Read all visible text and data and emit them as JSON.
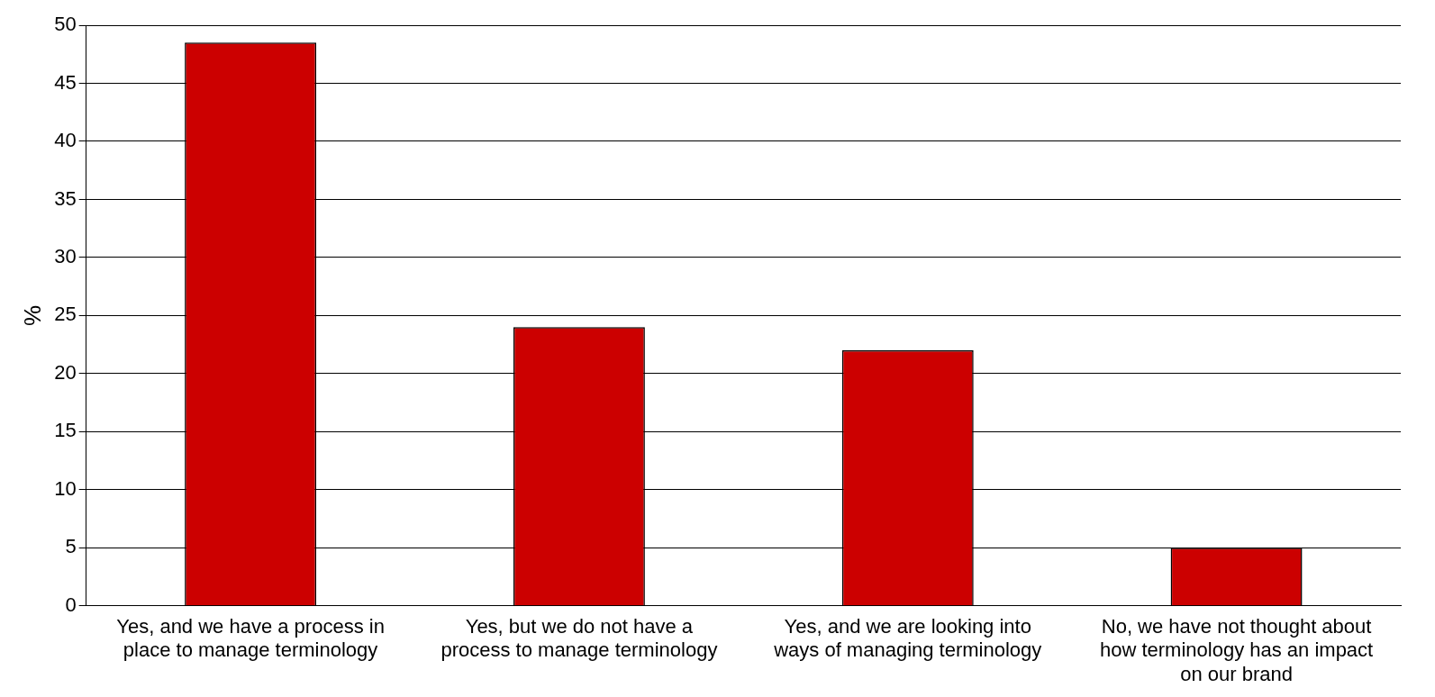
{
  "chart_data": {
    "type": "bar",
    "ylabel": "%",
    "categories": [
      "Yes, and we have a process in place to manage terminology",
      "Yes, but we do not have a process to manage terminology",
      "Yes, and we are looking into ways of managing terminology",
      "No, we have not thought about how terminology has an impact on our brand"
    ],
    "values": [
      48.5,
      24,
      22,
      5
    ],
    "color": "#cc0000",
    "ylim": [
      0,
      50
    ],
    "yticks": [
      0,
      5,
      10,
      15,
      20,
      25,
      30,
      35,
      40,
      45,
      50
    ],
    "grid": "y"
  }
}
